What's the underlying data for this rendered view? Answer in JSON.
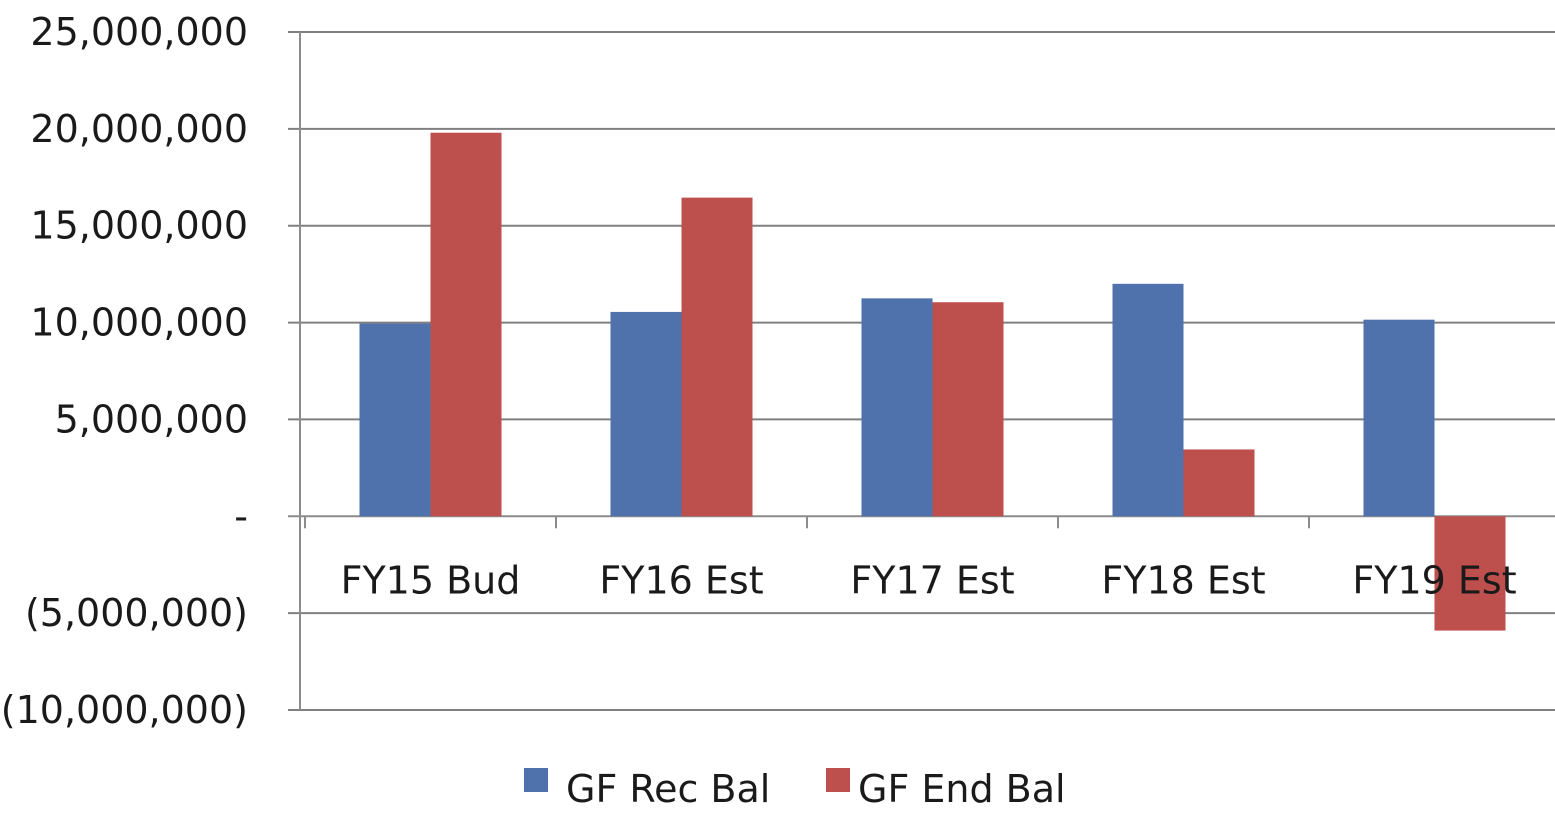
{
  "chart_data": {
    "type": "bar",
    "title": "",
    "xlabel": "",
    "ylabel": "",
    "categories": [
      "FY15 Bud",
      "FY16 Est",
      "FY17 Est",
      "FY18 Est",
      "FY19 Est"
    ],
    "series": [
      {
        "name": "GF Rec Bal",
        "color": "#4f72ad",
        "values": [
          9950000,
          10550000,
          11250000,
          12000000,
          10150000
        ]
      },
      {
        "name": "GF End Bal",
        "color": "#bd4f4d",
        "values": [
          19800000,
          16450000,
          11050000,
          3450000,
          -5900000
        ]
      }
    ],
    "ylim": [
      -10000000,
      25000000
    ],
    "yticks": [
      25000000,
      20000000,
      15000000,
      10000000,
      5000000,
      0,
      -5000000,
      -10000000
    ],
    "ytick_labels": [
      "25,000,000",
      "20,000,000",
      "15,000,000",
      "10,000,000",
      "5,000,000",
      "-",
      "(5,000,000)",
      "(10,000,000)"
    ],
    "grid": true,
    "legend_position": "bottom",
    "gridline_color": "#808080",
    "axis_color": "#8c8c8c"
  }
}
